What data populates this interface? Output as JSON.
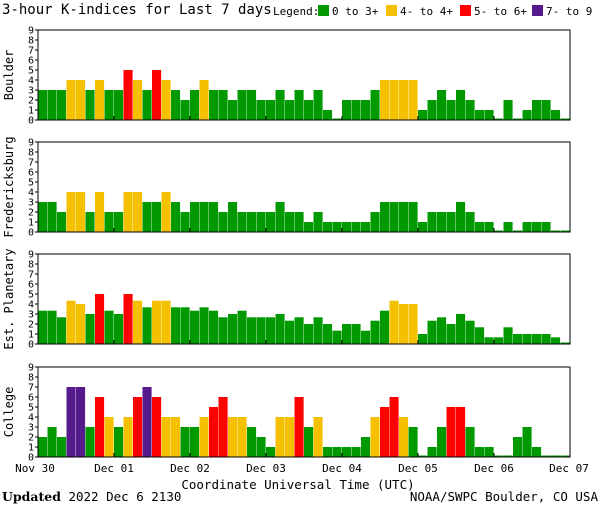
{
  "chart_data": {
    "type": "bar",
    "title": "3-hour K-indices for Last 7 days",
    "legend": {
      "label": "Legend:",
      "placement": "top-right",
      "items": [
        {
          "label": "0 to 3+",
          "color": "#009900",
          "min": 0,
          "max": 3.999
        },
        {
          "label": "4- to 4+",
          "color": "#f5c000",
          "min": 4,
          "max": 4.999
        },
        {
          "label": "5- to 6+",
          "color": "#ff0000",
          "min": 5,
          "max": 6.999
        },
        {
          "label": "7- to 9",
          "color": "#551a8b",
          "min": 7,
          "max": 9
        }
      ]
    },
    "xlabel": "Coordinate Universal Time (UTC)",
    "x_ticks": [
      "Nov 30",
      "Dec 01",
      "Dec 02",
      "Dec 03",
      "Dec 04",
      "Dec 05",
      "Dec 06",
      "Dec 07"
    ],
    "ylim": [
      0,
      9
    ],
    "y_ticks": [
      0,
      1,
      2,
      3,
      4,
      5,
      6,
      7,
      8,
      9
    ],
    "grid": false,
    "series": [
      {
        "name": "Boulder",
        "values": [
          3,
          3,
          3,
          4,
          4,
          3,
          4,
          3,
          3,
          5,
          4,
          3,
          5,
          4,
          3,
          2,
          3,
          4,
          3,
          3,
          2,
          3,
          3,
          2,
          2,
          3,
          2,
          3,
          2,
          3,
          1,
          0,
          2,
          2,
          2,
          3,
          4,
          4,
          4,
          4,
          1,
          2,
          3,
          2,
          3,
          2,
          1,
          1,
          0,
          2,
          0,
          1,
          2,
          2,
          1,
          0
        ]
      },
      {
        "name": "Fredericksburg",
        "values": [
          3,
          3,
          2,
          4,
          4,
          2,
          4,
          2,
          2,
          4,
          4,
          3,
          3,
          4,
          3,
          2,
          3,
          3,
          3,
          2,
          3,
          2,
          2,
          2,
          2,
          3,
          2,
          2,
          1,
          2,
          1,
          1,
          1,
          1,
          1,
          2,
          3,
          3,
          3,
          3,
          1,
          2,
          2,
          2,
          3,
          2,
          1,
          1,
          0,
          1,
          0,
          1,
          1,
          1,
          0,
          0
        ]
      },
      {
        "name": "Est. Planetary",
        "values": [
          3.33,
          3.33,
          2.67,
          4.33,
          4.0,
          3.0,
          5.0,
          3.33,
          3.0,
          5.0,
          4.33,
          3.67,
          4.33,
          4.33,
          3.67,
          3.67,
          3.33,
          3.67,
          3.33,
          2.67,
          3.0,
          3.33,
          2.67,
          2.67,
          2.67,
          3.0,
          2.33,
          2.67,
          2.0,
          2.67,
          2.0,
          1.33,
          2.0,
          2.0,
          1.33,
          2.33,
          3.33,
          4.33,
          4.0,
          4.0,
          1.0,
          2.33,
          2.67,
          2.0,
          3.0,
          2.33,
          1.67,
          0.67,
          0.67,
          1.67,
          1.0,
          1.0,
          1.0,
          1.0,
          0.67,
          0.0
        ]
      },
      {
        "name": "College",
        "values": [
          2,
          3,
          2,
          7,
          7,
          3,
          6,
          4,
          3,
          4,
          6,
          7,
          6,
          4,
          4,
          3,
          3,
          4,
          5,
          6,
          4,
          4,
          3,
          2,
          1,
          4,
          4,
          6,
          3,
          4,
          1,
          1,
          1,
          1,
          2,
          4,
          5,
          6,
          4,
          3,
          0,
          1,
          3,
          5,
          5,
          3,
          1,
          1,
          0,
          0,
          2,
          3,
          1,
          0,
          0,
          0
        ]
      }
    ]
  },
  "footer": {
    "updated_label": "Updated",
    "updated_value": "2022 Dec  6 2130",
    "credit": "NOAA/SWPC Boulder, CO USA"
  }
}
